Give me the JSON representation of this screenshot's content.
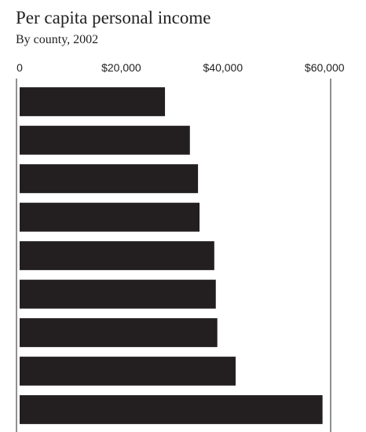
{
  "chart_data": {
    "type": "bar",
    "orientation": "horizontal",
    "title": "Per capita personal income",
    "subtitle": "By county, 2002",
    "categories": [
      null,
      null,
      null,
      null,
      null,
      null,
      null,
      null,
      null
    ],
    "values": [
      28600,
      33500,
      35100,
      35400,
      38300,
      38600,
      38900,
      42500,
      59600
    ],
    "color": "#231f20",
    "xlim": [
      0,
      61200
    ],
    "xticks": [
      0,
      {
        "value": 20000,
        "label": "$20,000"
      },
      {
        "value": 40000,
        "label": "$40,000"
      },
      {
        "value": 60000,
        "label": "$60,000"
      }
    ],
    "grid": false
  }
}
